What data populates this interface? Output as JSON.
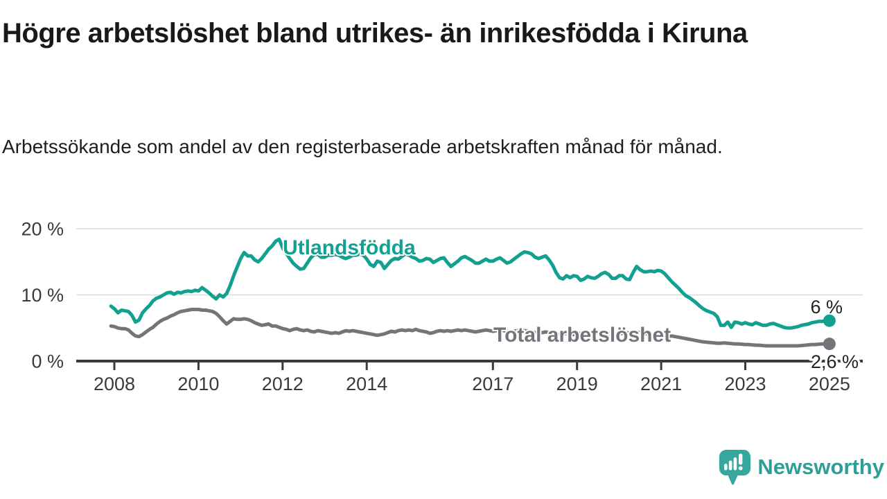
{
  "title": "Högre arbetslöshet bland utrikes- än inrikesfödda i Kiruna",
  "subtitle": "Arbetssökande som andel av den registerbaserade arbetskraften månad för månad.",
  "branding": {
    "logo_text": "Newsworthy",
    "logo_color": "#35a79e",
    "text_color": "#2e9e97"
  },
  "chart_data": {
    "type": "line",
    "title": "",
    "xlabel": "",
    "ylabel": "",
    "grid": "horizontal",
    "legend_position": "inline-labels",
    "xlim": [
      2007.1,
      2025.8
    ],
    "ylim": [
      0,
      21
    ],
    "y_ticks": [
      {
        "value": 0,
        "label": "0 %"
      },
      {
        "value": 10,
        "label": "10 %"
      },
      {
        "value": 20,
        "label": "20 %"
      }
    ],
    "x_ticks": [
      {
        "value": 2008,
        "label": "2008"
      },
      {
        "value": 2010,
        "label": "2010"
      },
      {
        "value": 2012,
        "label": "2012"
      },
      {
        "value": 2014,
        "label": "2014"
      },
      {
        "value": 2017,
        "label": "2017"
      },
      {
        "value": 2019,
        "label": "2019"
      },
      {
        "value": 2021,
        "label": "2021"
      },
      {
        "value": 2023,
        "label": "2023"
      },
      {
        "value": 2025,
        "label": "2025"
      }
    ],
    "series": [
      {
        "name": "Utlandsfödda",
        "color": "#12a091",
        "end_label": "6 %",
        "x_start": 2007.92,
        "x_end": 2025.0,
        "values": [
          8.3,
          7.9,
          7.3,
          7.7,
          7.6,
          7.5,
          6.9,
          5.9,
          6.2,
          7.3,
          7.9,
          8.4,
          9.1,
          9.5,
          9.7,
          10.0,
          10.3,
          10.4,
          10.1,
          10.4,
          10.3,
          10.5,
          10.6,
          10.5,
          10.7,
          10.6,
          11.1,
          10.7,
          10.3,
          9.8,
          9.4,
          10.0,
          9.7,
          10.2,
          11.4,
          12.9,
          14.2,
          15.5,
          16.4,
          15.9,
          15.9,
          15.3,
          15.0,
          15.5,
          16.2,
          16.9,
          17.4,
          18.1,
          18.4,
          17.1,
          16.3,
          15.5,
          14.8,
          14.3,
          13.9,
          14.0,
          14.8,
          15.6,
          16.1,
          16.1,
          15.7,
          15.7,
          16.0,
          16.0,
          16.1,
          16.0,
          15.7,
          15.5,
          15.7,
          16.0,
          16.0,
          16.2,
          16.0,
          15.4,
          14.6,
          14.3,
          15.1,
          14.9,
          14.0,
          14.6,
          15.2,
          15.5,
          15.4,
          15.8,
          16.2,
          16.0,
          15.7,
          15.5,
          15.1,
          15.2,
          15.5,
          15.4,
          14.9,
          15.2,
          15.5,
          15.6,
          14.9,
          14.3,
          14.7,
          15.1,
          15.6,
          15.8,
          15.5,
          15.2,
          14.8,
          14.8,
          15.1,
          15.4,
          15.1,
          15.1,
          15.4,
          15.6,
          15.2,
          14.8,
          15.0,
          15.4,
          15.8,
          16.2,
          16.5,
          16.4,
          16.2,
          15.7,
          15.5,
          15.7,
          15.9,
          15.3,
          14.5,
          13.4,
          12.6,
          12.4,
          12.9,
          12.6,
          12.9,
          12.8,
          12.2,
          12.4,
          12.8,
          12.6,
          12.5,
          12.8,
          13.2,
          13.4,
          13.1,
          12.5,
          12.5,
          12.9,
          12.9,
          12.4,
          12.3,
          13.4,
          14.3,
          13.8,
          13.5,
          13.5,
          13.6,
          13.5,
          13.7,
          13.6,
          13.2,
          12.6,
          12.0,
          11.5,
          11.0,
          10.4,
          9.9,
          9.6,
          9.2,
          8.8,
          8.3,
          7.9,
          7.6,
          7.4,
          7.2,
          6.7,
          5.4,
          5.4,
          5.9,
          5.1,
          5.9,
          5.8,
          5.6,
          5.8,
          5.6,
          5.5,
          5.8,
          5.6,
          5.4,
          5.4,
          5.6,
          5.7,
          5.5,
          5.3,
          5.1,
          5.0,
          5.0,
          5.1,
          5.2,
          5.4,
          5.5,
          5.6,
          5.8,
          5.9,
          6.0,
          6.0,
          6.1,
          6.1
        ]
      },
      {
        "name": "Total arbetslöshet",
        "color": "#76747a",
        "end_label": "2,6 %",
        "x_start": 2007.92,
        "x_end": 2025.0,
        "values": [
          5.3,
          5.2,
          5.0,
          4.9,
          4.9,
          4.7,
          4.2,
          3.8,
          3.7,
          4.0,
          4.4,
          4.8,
          5.1,
          5.6,
          6.0,
          6.3,
          6.5,
          6.8,
          7.0,
          7.3,
          7.5,
          7.6,
          7.7,
          7.8,
          7.8,
          7.8,
          7.7,
          7.7,
          7.6,
          7.5,
          7.2,
          6.7,
          6.1,
          5.6,
          6.0,
          6.4,
          6.3,
          6.3,
          6.4,
          6.3,
          6.1,
          5.8,
          5.6,
          5.4,
          5.5,
          5.6,
          5.3,
          5.3,
          5.1,
          4.9,
          4.8,
          4.6,
          4.8,
          4.9,
          4.7,
          4.6,
          4.7,
          4.5,
          4.4,
          4.6,
          4.5,
          4.4,
          4.3,
          4.2,
          4.3,
          4.2,
          4.4,
          4.6,
          4.5,
          4.6,
          4.5,
          4.4,
          4.3,
          4.2,
          4.1,
          4.0,
          3.9,
          4.0,
          4.1,
          4.3,
          4.5,
          4.4,
          4.6,
          4.7,
          4.6,
          4.7,
          4.6,
          4.8,
          4.6,
          4.5,
          4.4,
          4.2,
          4.3,
          4.5,
          4.6,
          4.5,
          4.6,
          4.5,
          4.6,
          4.7,
          4.6,
          4.7,
          4.6,
          4.5,
          4.4,
          4.5,
          4.6,
          4.7,
          4.6,
          4.5,
          4.6,
          4.7,
          4.6,
          4.5,
          4.4,
          4.5,
          4.6,
          4.5,
          4.6,
          4.5,
          4.4,
          4.3,
          4.2,
          4.3,
          4.4,
          4.3,
          4.2,
          4.1,
          4.0,
          4.1,
          4.2,
          4.1,
          4.0,
          4.1,
          4.2,
          4.1,
          4.0,
          4.1,
          4.2,
          4.3,
          4.4,
          4.3,
          4.2,
          4.1,
          4.0,
          4.1,
          4.2,
          4.3,
          4.2,
          4.3,
          4.4,
          4.3,
          4.2,
          4.1,
          4.0,
          3.9,
          3.9,
          3.8,
          3.8,
          3.7,
          3.8,
          3.7,
          3.6,
          3.5,
          3.4,
          3.3,
          3.2,
          3.1,
          3.0,
          2.9,
          2.85,
          2.8,
          2.75,
          2.7,
          2.7,
          2.75,
          2.7,
          2.65,
          2.6,
          2.6,
          2.55,
          2.5,
          2.5,
          2.45,
          2.4,
          2.4,
          2.35,
          2.3,
          2.3,
          2.3,
          2.3,
          2.3,
          2.3,
          2.3,
          2.3,
          2.3,
          2.3,
          2.35,
          2.4,
          2.45,
          2.5,
          2.5,
          2.55,
          2.6,
          2.6,
          2.6
        ]
      }
    ]
  }
}
